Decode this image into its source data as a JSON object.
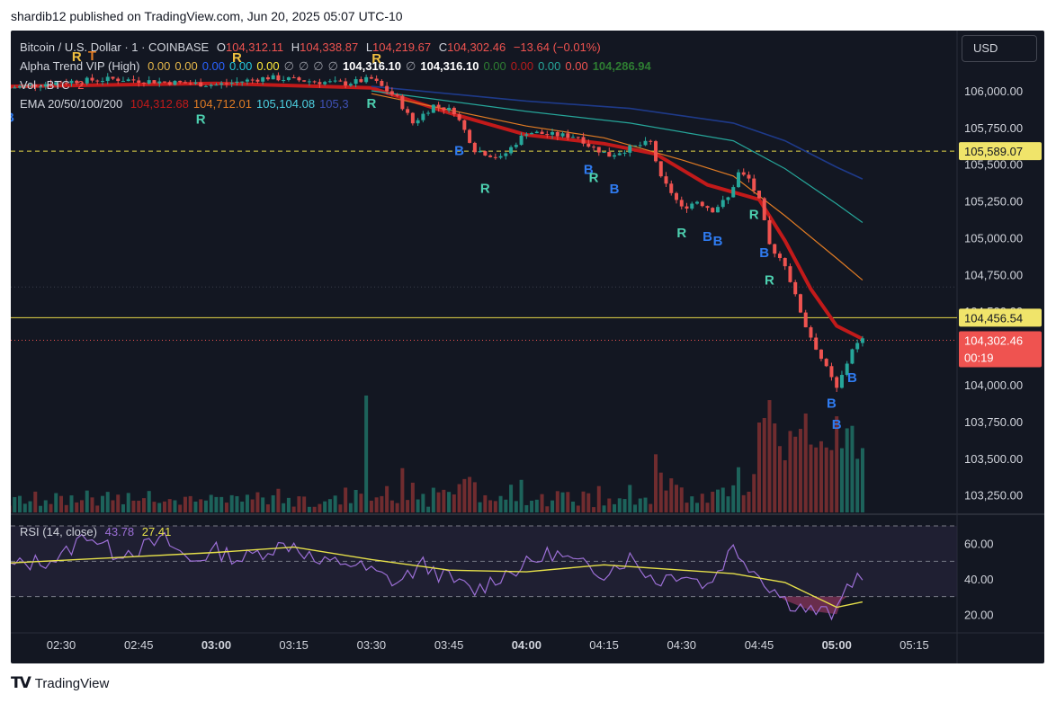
{
  "publish_line": "shardib12 published on TradingView.com, Jun 20, 2025 05:07 UTC-10",
  "currency": "USD",
  "footer_brand": "TradingView",
  "colors": {
    "background": "#131722",
    "bull": "#26a69a",
    "bear": "#ef5350",
    "ema20": "#c21a1a",
    "ema50": "#e07b24",
    "ema100": "#26a69a",
    "ema200": "#1e3a8a",
    "rsi": "#9c6fd6",
    "rsi_ma": "#e6e04a",
    "axis_text": "#d1d4dc"
  },
  "legend": {
    "symbol": "Bitcoin / U.S. Dollar · 1 · COINBASE",
    "o_label": "O",
    "o": "104,312.11",
    "h_label": "H",
    "h": "104,338.87",
    "l_label": "L",
    "l": "104,219.67",
    "c_label": "C",
    "c": "104,302.46",
    "change": "−13.64 (−0.01%)",
    "alpha_name": "Alpha Trend VIP (High)",
    "alpha_vals": [
      "0.00",
      "0.00",
      "0.00",
      "0.00",
      "0.00",
      "∅",
      "∅",
      "∅",
      "∅",
      "104,316.10",
      "∅",
      "104,316.10",
      "0.00",
      "0.00",
      "0.00",
      "0.00",
      "104,286.94"
    ],
    "vol_name": "Vol · BTC",
    "vol_val": "2",
    "ema_name": "EMA 20/50/100/200",
    "ema_vals": [
      "104,312.68",
      "104,712.01",
      "105,104.08",
      "105,3"
    ]
  },
  "chart_data": {
    "type": "candlestick",
    "timeframe": "1",
    "exchange": "COINBASE",
    "x_ticks": [
      "02:30",
      "02:45",
      "03:00",
      "03:15",
      "03:30",
      "03:45",
      "04:00",
      "04:15",
      "04:30",
      "04:45",
      "05:00",
      "05:15"
    ],
    "x_ticks_bold": [
      "03:00",
      "04:00",
      "05:00"
    ],
    "y_ticks": [
      106000,
      105750,
      105500,
      105250,
      105000,
      104750,
      104500,
      104250,
      104000,
      103750,
      103500,
      103250
    ],
    "y_tick_labels": [
      "106,000.00",
      "105,750.00",
      "105,500.00",
      "105,250.00",
      "105,000.00",
      "104,750.00",
      "104,500.00",
      "104,250.00",
      "104,000.00",
      "103,750.00",
      "103,500.00",
      "103,250.00"
    ],
    "ylim": [
      103150,
      106330
    ],
    "price_labels": [
      {
        "value": 105589.07,
        "text": "105,589.07",
        "style": "dashed-yellow"
      },
      {
        "value": 104456.54,
        "text": "104,456.54",
        "style": "solid-yellow"
      },
      {
        "value": 104302.46,
        "text": "104,302.46",
        "countdown": "00:19",
        "style": "last-price"
      }
    ],
    "price_path": [
      [
        "02:20",
        106020
      ],
      [
        "02:30",
        106060
      ],
      [
        "02:40",
        106080
      ],
      [
        "02:50",
        106060
      ],
      [
        "03:00",
        106040
      ],
      [
        "03:10",
        106090
      ],
      [
        "03:20",
        106060
      ],
      [
        "03:25",
        106050
      ],
      [
        "03:30",
        106080
      ],
      [
        "03:35",
        105950
      ],
      [
        "03:38",
        105780
      ],
      [
        "03:42",
        105900
      ],
      [
        "03:46",
        105860
      ],
      [
        "03:50",
        105600
      ],
      [
        "03:55",
        105540
      ],
      [
        "04:00",
        105720
      ],
      [
        "04:05",
        105700
      ],
      [
        "04:10",
        105690
      ],
      [
        "04:12",
        105630
      ],
      [
        "04:16",
        105560
      ],
      [
        "04:20",
        105610
      ],
      [
        "04:24",
        105650
      ],
      [
        "04:26",
        105400
      ],
      [
        "04:28",
        105310
      ],
      [
        "04:30",
        105200
      ],
      [
        "04:33",
        105250
      ],
      [
        "04:36",
        105190
      ],
      [
        "04:39",
        105270
      ],
      [
        "04:41",
        105440
      ],
      [
        "04:43",
        105400
      ],
      [
        "04:45",
        105250
      ],
      [
        "04:47",
        104950
      ],
      [
        "04:50",
        104820
      ],
      [
        "04:52",
        104600
      ],
      [
        "04:54",
        104400
      ],
      [
        "04:57",
        104180
      ],
      [
        "05:00",
        103970
      ],
      [
        "05:02",
        104150
      ],
      [
        "05:03",
        104250
      ],
      [
        "05:05",
        104302
      ]
    ],
    "ema_paths": {
      "ema20": [
        [
          "02:20",
          106030
        ],
        [
          "03:00",
          106050
        ],
        [
          "03:30",
          106020
        ],
        [
          "03:45",
          105850
        ],
        [
          "04:00",
          105700
        ],
        [
          "04:15",
          105640
        ],
        [
          "04:25",
          105570
        ],
        [
          "04:35",
          105360
        ],
        [
          "04:45",
          105260
        ],
        [
          "04:50",
          104980
        ],
        [
          "04:55",
          104650
        ],
        [
          "05:00",
          104400
        ],
        [
          "05:05",
          104312
        ]
      ],
      "ema50": [
        [
          "03:30",
          105980
        ],
        [
          "04:00",
          105760
        ],
        [
          "04:15",
          105680
        ],
        [
          "04:30",
          105530
        ],
        [
          "04:40",
          105420
        ],
        [
          "04:50",
          105150
        ],
        [
          "05:00",
          104860
        ],
        [
          "05:05",
          104712
        ]
      ],
      "ema100": [
        [
          "03:30",
          106000
        ],
        [
          "04:00",
          105860
        ],
        [
          "04:20",
          105780
        ],
        [
          "04:40",
          105660
        ],
        [
          "04:50",
          105470
        ],
        [
          "05:00",
          105230
        ],
        [
          "05:05",
          105104
        ]
      ],
      "ema200": [
        [
          "03:30",
          106030
        ],
        [
          "04:00",
          105930
        ],
        [
          "04:20",
          105880
        ],
        [
          "04:40",
          105780
        ],
        [
          "04:50",
          105660
        ],
        [
          "05:00",
          105480
        ],
        [
          "05:05",
          105400
        ]
      ]
    },
    "signals": [
      {
        "t": "02:33",
        "side": "above",
        "text": "R",
        "color": "yellow"
      },
      {
        "t": "02:36",
        "side": "above",
        "text": "T",
        "color": "orange"
      },
      {
        "t": "03:04",
        "side": "above",
        "text": "R",
        "color": "yellow"
      },
      {
        "t": "03:31",
        "side": "above",
        "text": "R",
        "color": "yellow"
      },
      {
        "t": "02:20",
        "side": "below",
        "text": "B",
        "color": "blue"
      },
      {
        "t": "02:57",
        "side": "below",
        "text": "R",
        "color": "teal"
      },
      {
        "t": "03:30",
        "side": "below",
        "text": "R",
        "color": "teal"
      },
      {
        "t": "03:47",
        "side": "below",
        "text": "B",
        "color": "blue"
      },
      {
        "t": "03:52",
        "side": "below",
        "text": "R",
        "color": "teal"
      },
      {
        "t": "04:12",
        "side": "below",
        "text": "B",
        "color": "blue"
      },
      {
        "t": "04:13",
        "side": "below",
        "text": "R",
        "color": "teal"
      },
      {
        "t": "04:17",
        "side": "below",
        "text": "B",
        "color": "blue"
      },
      {
        "t": "04:30",
        "side": "below",
        "text": "R",
        "color": "teal"
      },
      {
        "t": "04:35",
        "side": "below",
        "text": "B",
        "color": "blue"
      },
      {
        "t": "04:37",
        "side": "below",
        "text": "B",
        "color": "blue"
      },
      {
        "t": "04:44",
        "side": "below",
        "text": "R",
        "color": "teal"
      },
      {
        "t": "04:46",
        "side": "below",
        "text": "B",
        "color": "blue"
      },
      {
        "t": "04:47",
        "side": "below",
        "text": "R",
        "color": "teal"
      },
      {
        "t": "04:59",
        "side": "below",
        "text": "B",
        "color": "blue"
      },
      {
        "t": "05:03",
        "side": "below",
        "text": "B",
        "color": "blue"
      },
      {
        "t": "05:00",
        "side": "below",
        "text": "B",
        "color": "blue"
      }
    ],
    "rsi": {
      "name": "RSI (14, close)",
      "value": "43.78",
      "ma_value": "27.41",
      "y_ticks": [
        60,
        40,
        20
      ],
      "y_tick_labels": [
        "60.00",
        "40.00",
        "20.00"
      ],
      "ylim": [
        10,
        70
      ],
      "bands": [
        70,
        50,
        30
      ],
      "rsi_path": [
        [
          "02:20",
          47
        ],
        [
          "02:30",
          52
        ],
        [
          "02:35",
          66
        ],
        [
          "02:40",
          55
        ],
        [
          "02:45",
          57
        ],
        [
          "02:50",
          62
        ],
        [
          "02:55",
          50
        ],
        [
          "03:00",
          56
        ],
        [
          "03:05",
          51
        ],
        [
          "03:10",
          57
        ],
        [
          "03:15",
          60
        ],
        [
          "03:20",
          48
        ],
        [
          "03:25",
          50
        ],
        [
          "03:30",
          44
        ],
        [
          "03:35",
          38
        ],
        [
          "03:40",
          48
        ],
        [
          "03:45",
          40
        ],
        [
          "03:50",
          33
        ],
        [
          "03:55",
          42
        ],
        [
          "04:00",
          48
        ],
        [
          "04:05",
          55
        ],
        [
          "04:10",
          48
        ],
        [
          "04:15",
          44
        ],
        [
          "04:20",
          52
        ],
        [
          "04:25",
          39
        ],
        [
          "04:30",
          44
        ],
        [
          "04:35",
          36
        ],
        [
          "04:40",
          58
        ],
        [
          "04:45",
          42
        ],
        [
          "04:50",
          28
        ],
        [
          "04:55",
          22
        ],
        [
          "05:00",
          20
        ],
        [
          "05:02",
          36
        ],
        [
          "05:05",
          44
        ]
      ],
      "ma_path": [
        [
          "02:20",
          49
        ],
        [
          "02:40",
          52
        ],
        [
          "03:00",
          55
        ],
        [
          "03:15",
          58
        ],
        [
          "03:30",
          51
        ],
        [
          "03:45",
          45
        ],
        [
          "04:00",
          44
        ],
        [
          "04:15",
          48
        ],
        [
          "04:30",
          45
        ],
        [
          "04:40",
          43
        ],
        [
          "04:50",
          38
        ],
        [
          "05:00",
          24
        ],
        [
          "05:05",
          27
        ]
      ]
    }
  }
}
